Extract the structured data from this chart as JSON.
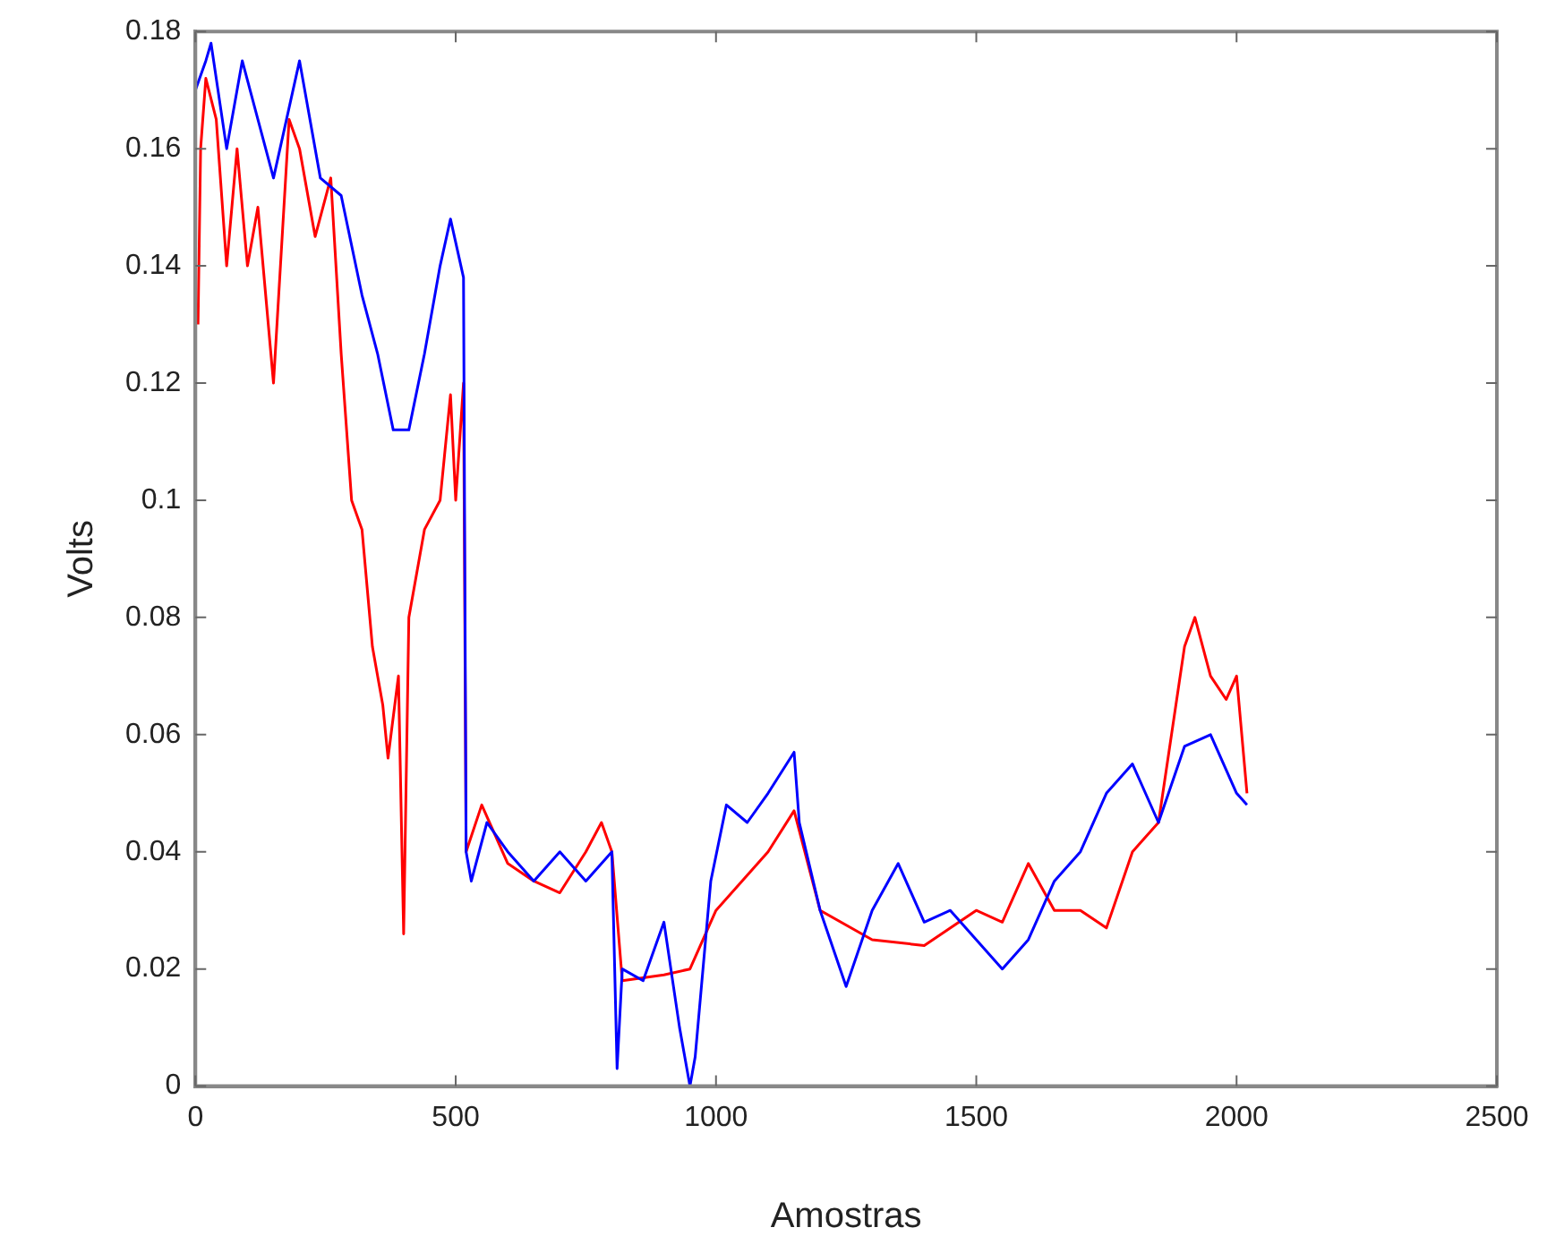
{
  "chart_data": {
    "type": "line",
    "xlabel": "Amostras",
    "ylabel": "Volts",
    "xlim": [
      0,
      2500
    ],
    "xticks": [
      0,
      500,
      1000,
      1500,
      2000,
      2500
    ],
    "ylim": [
      0,
      0.18
    ],
    "yticks": [
      0,
      0.02,
      0.04,
      0.06,
      0.08,
      {
        "value": 0.1,
        "label": "0.1"
      },
      0.12,
      0.14,
      0.16,
      0.18
    ],
    "grid": false,
    "legend": false,
    "marker": "none",
    "line_style": "solid",
    "series": [
      {
        "color": "#0000ff",
        "x": [
          0,
          20,
          30,
          60,
          90,
          120,
          150,
          200,
          240,
          280,
          320,
          350,
          380,
          410,
          440,
          470,
          490,
          515,
          520,
          530,
          560,
          600,
          650,
          700,
          750,
          800,
          810,
          820,
          860,
          900,
          930,
          950,
          960,
          990,
          1020,
          1060,
          1100,
          1150,
          1160,
          1200,
          1250,
          1300,
          1350,
          1400,
          1450,
          1500,
          1550,
          1600,
          1650,
          1700,
          1750,
          1800,
          1850,
          1900,
          1950,
          2000,
          2020
        ],
        "values": [
          0.17,
          0.175,
          0.178,
          0.16,
          0.175,
          0.165,
          0.155,
          0.175,
          0.155,
          0.152,
          0.135,
          0.125,
          0.112,
          0.112,
          0.125,
          0.14,
          0.148,
          0.138,
          0.04,
          0.035,
          0.045,
          0.04,
          0.035,
          0.04,
          0.035,
          0.04,
          0.003,
          0.02,
          0.018,
          0.028,
          0.01,
          0.0,
          0.005,
          0.035,
          0.048,
          0.045,
          0.05,
          0.057,
          0.045,
          0.03,
          0.017,
          0.03,
          0.038,
          0.028,
          0.03,
          0.025,
          0.02,
          0.025,
          0.035,
          0.04,
          0.05,
          0.055,
          0.045,
          0.058,
          0.06,
          0.05,
          0.048
        ]
      },
      {
        "color": "#ff0000",
        "x": [
          5,
          10,
          20,
          40,
          60,
          80,
          100,
          120,
          150,
          180,
          200,
          230,
          260,
          280,
          300,
          320,
          340,
          360,
          370,
          390,
          400,
          410,
          440,
          470,
          490,
          500,
          515,
          520,
          550,
          600,
          650,
          700,
          750,
          780,
          800,
          820,
          900,
          950,
          1000,
          1050,
          1100,
          1150,
          1200,
          1300,
          1400,
          1500,
          1550,
          1600,
          1650,
          1700,
          1750,
          1800,
          1850,
          1900,
          1920,
          1950,
          1980,
          2000,
          2020
        ],
        "values": [
          0.13,
          0.16,
          0.172,
          0.165,
          0.14,
          0.16,
          0.14,
          0.15,
          0.12,
          0.165,
          0.16,
          0.145,
          0.155,
          0.125,
          0.1,
          0.095,
          0.075,
          0.065,
          0.056,
          0.07,
          0.026,
          0.08,
          0.095,
          0.1,
          0.118,
          0.1,
          0.12,
          0.04,
          0.048,
          0.038,
          0.035,
          0.033,
          0.04,
          0.045,
          0.04,
          0.018,
          0.019,
          0.02,
          0.03,
          0.035,
          0.04,
          0.047,
          0.03,
          0.025,
          0.024,
          0.03,
          0.028,
          0.038,
          0.03,
          0.03,
          0.027,
          0.04,
          0.045,
          0.075,
          0.08,
          0.07,
          0.066,
          0.07,
          0.05
        ]
      }
    ]
  }
}
